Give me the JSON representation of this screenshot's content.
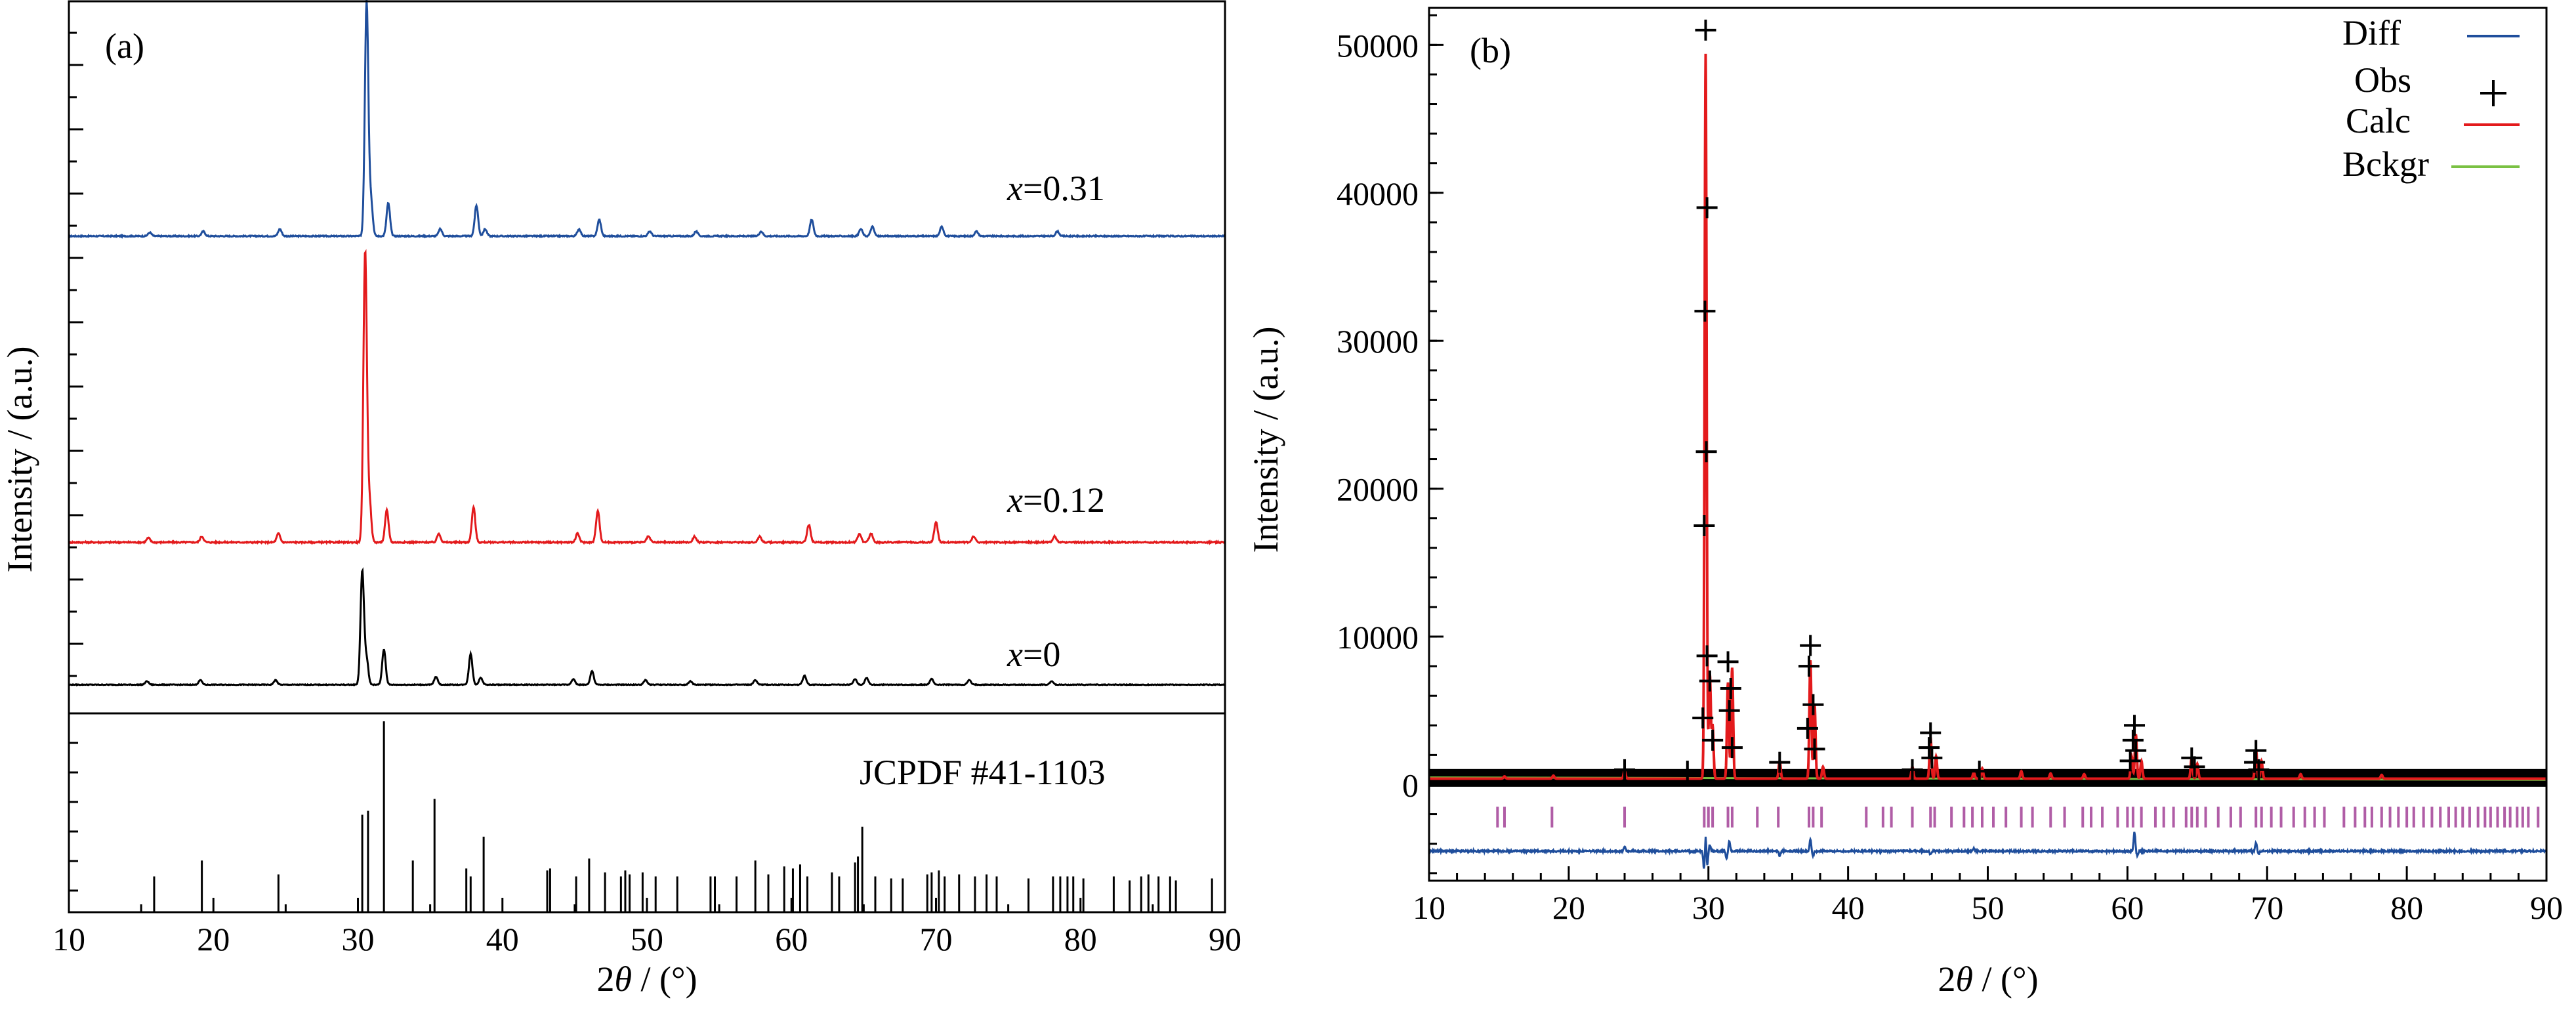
{
  "chart_data": [
    {
      "id": "a",
      "type": "line",
      "panel_label": "(a)",
      "xlabel_parts": [
        "2",
        "θ",
        " / (°)"
      ],
      "ylabel": "Intensity / (a.u.)",
      "xlim": [
        10,
        90
      ],
      "xticks": [
        10,
        20,
        30,
        40,
        50,
        60,
        70,
        80,
        90
      ],
      "grid": false,
      "series": [
        {
          "name": "x=0.31",
          "label_prefix": "x",
          "label_value": "=0.31",
          "color": "#1f4e9c",
          "offset": 0.65,
          "scale": 0.33,
          "baseline": 0.04,
          "peaks": [
            [
              15.6,
              0.015
            ],
            [
              19.3,
              0.02
            ],
            [
              24.6,
              0.03
            ],
            [
              30.6,
              1.0
            ],
            [
              30.9,
              0.15
            ],
            [
              32.1,
              0.14
            ],
            [
              35.7,
              0.03
            ],
            [
              38.2,
              0.13
            ],
            [
              38.8,
              0.03
            ],
            [
              45.3,
              0.03
            ],
            [
              46.7,
              0.07
            ],
            [
              50.2,
              0.02
            ],
            [
              53.4,
              0.02
            ],
            [
              57.9,
              0.02
            ],
            [
              61.4,
              0.07
            ],
            [
              64.8,
              0.03
            ],
            [
              65.6,
              0.04
            ],
            [
              70.4,
              0.04
            ],
            [
              72.8,
              0.02
            ],
            [
              78.4,
              0.02
            ]
          ]
        },
        {
          "name": "x=0.12",
          "label_prefix": "x",
          "label_value": "=0.12",
          "color": "#e31a1c",
          "offset": 0.22,
          "scale": 0.41,
          "baseline": 0.04,
          "peaks": [
            [
              15.5,
              0.015
            ],
            [
              19.2,
              0.02
            ],
            [
              24.5,
              0.03
            ],
            [
              30.5,
              1.0
            ],
            [
              30.8,
              0.14
            ],
            [
              32.0,
              0.11
            ],
            [
              35.6,
              0.03
            ],
            [
              38.0,
              0.12
            ],
            [
              45.2,
              0.03
            ],
            [
              46.6,
              0.11
            ],
            [
              50.1,
              0.02
            ],
            [
              53.3,
              0.02
            ],
            [
              57.8,
              0.02
            ],
            [
              61.2,
              0.06
            ],
            [
              64.7,
              0.03
            ],
            [
              65.5,
              0.03
            ],
            [
              70.0,
              0.07
            ],
            [
              72.6,
              0.02
            ],
            [
              78.2,
              0.02
            ]
          ]
        },
        {
          "name": "x=0",
          "label_prefix": "x",
          "label_value": "=0",
          "color": "#000000",
          "offset": 0.02,
          "scale": 0.16,
          "baseline": 0.05,
          "peaks": [
            [
              15.4,
              0.03
            ],
            [
              19.1,
              0.04
            ],
            [
              24.3,
              0.04
            ],
            [
              30.3,
              1.0
            ],
            [
              30.6,
              0.22
            ],
            [
              31.8,
              0.31
            ],
            [
              35.4,
              0.07
            ],
            [
              37.8,
              0.27
            ],
            [
              38.5,
              0.06
            ],
            [
              44.9,
              0.05
            ],
            [
              46.2,
              0.12
            ],
            [
              49.9,
              0.04
            ],
            [
              53.0,
              0.03
            ],
            [
              57.5,
              0.04
            ],
            [
              60.9,
              0.08
            ],
            [
              64.4,
              0.05
            ],
            [
              65.2,
              0.06
            ],
            [
              69.7,
              0.05
            ],
            [
              72.3,
              0.04
            ],
            [
              78.0,
              0.03
            ]
          ]
        }
      ],
      "reference": {
        "label": "JCPDF  #41-1103",
        "lines": [
          [
            15.9,
            0.18
          ],
          [
            19.2,
            0.26
          ],
          [
            24.5,
            0.19
          ],
          [
            30.3,
            0.49
          ],
          [
            30.7,
            0.51
          ],
          [
            31.8,
            0.96
          ],
          [
            33.8,
            0.26
          ],
          [
            35.3,
            0.57
          ],
          [
            37.5,
            0.22
          ],
          [
            37.8,
            0.18
          ],
          [
            38.7,
            0.38
          ],
          [
            43.1,
            0.21
          ],
          [
            43.3,
            0.22
          ],
          [
            45.1,
            0.18
          ],
          [
            46.0,
            0.27
          ],
          [
            47.1,
            0.2
          ],
          [
            48.2,
            0.18
          ],
          [
            48.5,
            0.21
          ],
          [
            48.8,
            0.19
          ],
          [
            49.7,
            0.2
          ],
          [
            50.6,
            0.18
          ],
          [
            52.1,
            0.18
          ],
          [
            54.4,
            0.18
          ],
          [
            54.7,
            0.18
          ],
          [
            56.2,
            0.18
          ],
          [
            57.5,
            0.26
          ],
          [
            58.4,
            0.19
          ],
          [
            59.5,
            0.23
          ],
          [
            60.1,
            0.22
          ],
          [
            60.6,
            0.24
          ],
          [
            61.1,
            0.18
          ],
          [
            62.8,
            0.2
          ],
          [
            63.3,
            0.18
          ],
          [
            64.4,
            0.25
          ],
          [
            64.6,
            0.28
          ],
          [
            64.9,
            0.43
          ],
          [
            65.8,
            0.18
          ],
          [
            66.9,
            0.17
          ],
          [
            67.7,
            0.17
          ],
          [
            69.4,
            0.19
          ],
          [
            69.7,
            0.2
          ],
          [
            70.2,
            0.21
          ],
          [
            70.6,
            0.18
          ],
          [
            71.6,
            0.19
          ],
          [
            72.7,
            0.18
          ],
          [
            73.5,
            0.19
          ],
          [
            74.2,
            0.18
          ],
          [
            76.4,
            0.17
          ],
          [
            78.1,
            0.18
          ],
          [
            78.6,
            0.18
          ],
          [
            79.1,
            0.18
          ],
          [
            79.5,
            0.18
          ],
          [
            80.2,
            0.17
          ],
          [
            82.3,
            0.18
          ],
          [
            83.4,
            0.16
          ],
          [
            84.2,
            0.18
          ],
          [
            84.7,
            0.19
          ],
          [
            85.4,
            0.18
          ],
          [
            86.2,
            0.18
          ],
          [
            86.6,
            0.16
          ],
          [
            89.1,
            0.17
          ]
        ]
      }
    },
    {
      "id": "b",
      "type": "line",
      "panel_label": "(b)",
      "xlabel_parts": [
        "2",
        "θ",
        " / (°)"
      ],
      "ylabel": "Intensity / (a.u.)",
      "xlim": [
        10,
        90
      ],
      "ylim": [
        -6500,
        52500
      ],
      "xticks": [
        10,
        20,
        30,
        40,
        50,
        60,
        70,
        80,
        90
      ],
      "yticks": [
        0,
        10000,
        20000,
        30000,
        40000,
        50000
      ],
      "grid": false,
      "legend_position": "top-right",
      "legend": [
        {
          "label": "Diff",
          "color": "#1f4e9c",
          "marker": "line"
        },
        {
          "label": "Obs",
          "color": "#000000",
          "marker": "+"
        },
        {
          "label": "Calc",
          "color": "#e31a1c",
          "marker": "line"
        },
        {
          "label": "Bckgr",
          "color": "#7ac143",
          "marker": "line"
        }
      ],
      "colors": {
        "diff": "#1f4e9c",
        "obs": "#000000",
        "calc": "#e31a1c",
        "background": "#7ac143",
        "reflections": "#b05da6"
      },
      "background_level": 400,
      "diff_offset": -4500,
      "reflection_level": -2200,
      "calc_peaks": [
        [
          15.4,
          150
        ],
        [
          18.9,
          200
        ],
        [
          24.0,
          500
        ],
        [
          29.8,
          49000
        ],
        [
          30.1,
          7000
        ],
        [
          30.3,
          3500
        ],
        [
          31.4,
          6500
        ],
        [
          31.7,
          7500
        ],
        [
          35.1,
          1200
        ],
        [
          37.3,
          8000
        ],
        [
          37.6,
          5000
        ],
        [
          38.2,
          800
        ],
        [
          44.6,
          800
        ],
        [
          45.9,
          2800
        ],
        [
          46.3,
          1500
        ],
        [
          49.0,
          400
        ],
        [
          49.6,
          700
        ],
        [
          52.4,
          500
        ],
        [
          54.5,
          350
        ],
        [
          56.9,
          300
        ],
        [
          60.3,
          1500
        ],
        [
          60.6,
          3000
        ],
        [
          61.0,
          1200
        ],
        [
          64.6,
          1400
        ],
        [
          65.0,
          1000
        ],
        [
          69.2,
          2000
        ],
        [
          69.6,
          1200
        ],
        [
          72.4,
          300
        ],
        [
          78.2,
          250
        ]
      ],
      "obs_points": [
        [
          29.8,
          51000
        ],
        [
          29.9,
          39000
        ],
        [
          29.75,
          32000
        ],
        [
          29.85,
          22500
        ],
        [
          29.7,
          17500
        ],
        [
          29.9,
          8700
        ],
        [
          30.1,
          7000
        ],
        [
          29.6,
          4500
        ],
        [
          30.3,
          3000
        ],
        [
          31.4,
          8300
        ],
        [
          31.6,
          6500
        ],
        [
          31.5,
          5000
        ],
        [
          31.7,
          2500
        ],
        [
          37.3,
          9400
        ],
        [
          37.2,
          8000
        ],
        [
          37.5,
          5400
        ],
        [
          37.1,
          3800
        ],
        [
          37.6,
          2400
        ],
        [
          35.1,
          1500
        ],
        [
          45.9,
          3500
        ],
        [
          45.8,
          2500
        ],
        [
          46.0,
          1800
        ],
        [
          44.6,
          1000
        ],
        [
          49.4,
          900
        ],
        [
          60.5,
          4000
        ],
        [
          60.4,
          3000
        ],
        [
          60.6,
          2300
        ],
        [
          60.2,
          1600
        ],
        [
          64.6,
          1800
        ],
        [
          64.8,
          1200
        ],
        [
          69.2,
          2300
        ],
        [
          69.1,
          1500
        ],
        [
          69.4,
          1000
        ],
        [
          24.0,
          1000
        ],
        [
          28.5,
          900
        ]
      ],
      "reflections": [
        14.9,
        15.4,
        18.8,
        24.0,
        29.7,
        30.0,
        30.3,
        31.4,
        31.7,
        33.5,
        35.0,
        37.2,
        37.5,
        38.1,
        41.3,
        42.5,
        43.1,
        44.6,
        45.9,
        46.2,
        47.4,
        48.3,
        48.9,
        49.6,
        50.4,
        51.3,
        52.4,
        53.2,
        54.5,
        55.5,
        56.8,
        57.4,
        58.2,
        59.3,
        60.0,
        60.4,
        61.0,
        62.0,
        62.6,
        63.3,
        64.2,
        64.6,
        65.0,
        65.6,
        66.5,
        67.4,
        68.1,
        69.2,
        69.6,
        70.3,
        71.0,
        71.9,
        72.7,
        73.4,
        74.1,
        75.5,
        76.3,
        77.0,
        77.5,
        78.2,
        78.8,
        79.4,
        80.0,
        80.5,
        81.2,
        81.8,
        82.4,
        83.0,
        83.5,
        84.0,
        84.5,
        85.1,
        85.6,
        86.0,
        86.5,
        87.0,
        87.4,
        87.9,
        88.3,
        88.7,
        89.4
      ],
      "diff_peaks": [
        [
          24.0,
          300
        ],
        [
          29.7,
          -1500
        ],
        [
          29.8,
          1600
        ],
        [
          29.9,
          -1200
        ],
        [
          30.1,
          400
        ],
        [
          31.3,
          -500
        ],
        [
          31.5,
          700
        ],
        [
          35.1,
          -300
        ],
        [
          37.3,
          800
        ],
        [
          37.5,
          -300
        ],
        [
          45.9,
          -250
        ],
        [
          49.0,
          200
        ],
        [
          60.5,
          1300
        ],
        [
          60.7,
          -300
        ],
        [
          69.2,
          600
        ],
        [
          69.4,
          -200
        ]
      ]
    }
  ]
}
